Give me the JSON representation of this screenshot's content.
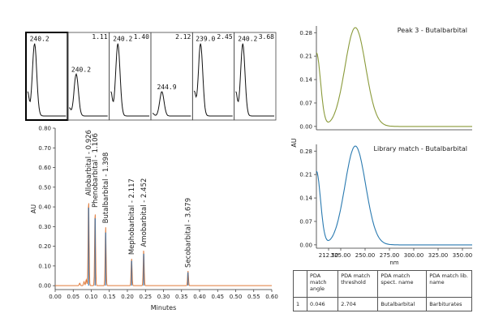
{
  "chart_data": [
    {
      "type": "line",
      "name": "spectra-thumbnails",
      "panels": [
        {
          "label": "240.2",
          "ret": "",
          "peak": 240.2,
          "height": 0.95,
          "selected": true
        },
        {
          "label": "240.2",
          "ret": "1.11",
          "peak": 240.2,
          "height": 0.55,
          "selected": false
        },
        {
          "label": "240.2",
          "ret": "1.40",
          "peak": 240.2,
          "height": 0.95,
          "selected": false
        },
        {
          "label": "244.9",
          "ret": "2.12",
          "peak": 244.9,
          "height": 0.32,
          "selected": false
        },
        {
          "label": "239.0",
          "ret": "2.45",
          "peak": 239.0,
          "height": 0.95,
          "selected": false
        },
        {
          "label": "240.2",
          "ret": "3.68",
          "peak": 240.2,
          "height": 0.95,
          "selected": false
        }
      ]
    },
    {
      "type": "line",
      "name": "chromatogram",
      "xlabel": "Minutes",
      "ylabel": "AU",
      "xlim": [
        0.0,
        0.6
      ],
      "ylim": [
        -0.02,
        0.8
      ],
      "xticks": [
        "0.00",
        "0.05",
        "0.10",
        "0.15",
        "0.20",
        "0.25",
        "0.30",
        "0.35",
        "0.40",
        "0.45",
        "0.50",
        "0.55",
        "0.60"
      ],
      "yticks": [
        "0.00",
        "0.10",
        "0.20",
        "0.30",
        "0.40",
        "0.50",
        "0.60",
        "0.70",
        "0.80"
      ],
      "peaks": [
        {
          "label": "Allobarbital - 0.926",
          "x": 0.0926,
          "height": 0.44
        },
        {
          "label": "Phenobarbital - 1.106",
          "x": 0.1106,
          "height": 0.38
        },
        {
          "label": "Butalbarbital - 1.398",
          "x": 0.1398,
          "height": 0.3
        },
        {
          "label": "Mephobarbital - 2.117",
          "x": 0.2117,
          "height": 0.14
        },
        {
          "label": "Amobarbital - 2.452",
          "x": 0.2452,
          "height": 0.18
        },
        {
          "label": "Secobarbital - 3.679",
          "x": 0.3679,
          "height": 0.075
        }
      ],
      "colors": {
        "trace": "#e07a3a",
        "marker": "#2a6fb0"
      }
    },
    {
      "type": "line",
      "name": "peak3-spectrum",
      "title": "Peak 3 - Butalbarbital",
      "ylabel": "AU",
      "xlim": [
        200,
        360
      ],
      "ylim": [
        -0.01,
        0.3
      ],
      "yticks": [
        "0.28",
        "0.21",
        "0.14",
        "0.07",
        "0.00"
      ],
      "color": "#8a9a3a",
      "peak_x": 240,
      "peak_y": 0.295,
      "start_y": 0.22,
      "valley_x": 212,
      "valley_y": 0.11
    },
    {
      "type": "line",
      "name": "library-spectrum",
      "title": "Library match - Butalbarbital",
      "ylabel": "AU",
      "xlabel": "nm",
      "xlim": [
        200,
        360
      ],
      "ylim": [
        -0.01,
        0.3
      ],
      "xticks": [
        "225.00",
        "250.00",
        "275.00",
        "300.00",
        "325.00",
        "350.00"
      ],
      "xticks_full": [
        "225.00",
        "250.00",
        "275.00",
        "300.00",
        "325.00",
        "350.00"
      ],
      "yticks": [
        "0.28",
        "0.21",
        "0.14",
        "0.07",
        "0.00"
      ],
      "color": "#2a7ab0",
      "peak_x": 240,
      "peak_y": 0.295,
      "start_y": 0.22,
      "valley_x": 212,
      "valley_y": 0.11
    }
  ],
  "lib_xtick_first": "225.00",
  "lib_xtick_extra": "212.50",
  "table": {
    "headers": [
      "",
      "PDA match angle",
      "PDA match threshold",
      "PDA match spect. name",
      "PDA match lib. name"
    ],
    "rows": [
      [
        "1",
        "0.046",
        "2.704",
        "Butalbarbital",
        "Barbiturates"
      ]
    ]
  }
}
